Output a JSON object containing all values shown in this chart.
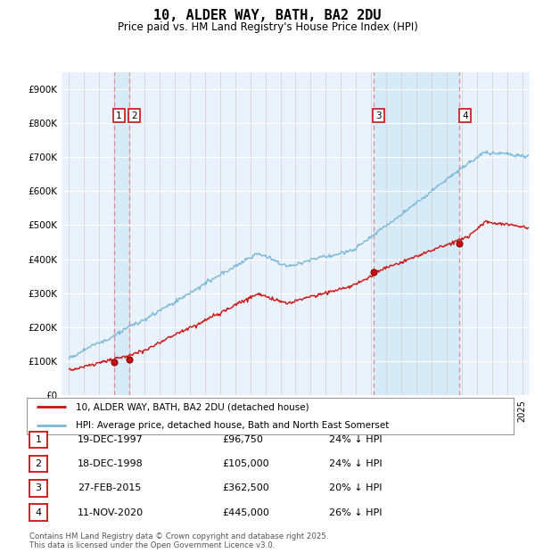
{
  "title": "10, ALDER WAY, BATH, BA2 2DU",
  "subtitle": "Price paid vs. HM Land Registry's House Price Index (HPI)",
  "background_color": "#ffffff",
  "plot_bg_color": "#eaf2fb",
  "ylim": [
    0,
    950000
  ],
  "yticks": [
    0,
    100000,
    200000,
    300000,
    400000,
    500000,
    600000,
    700000,
    800000,
    900000
  ],
  "ytick_labels": [
    "£0",
    "£100K",
    "£200K",
    "£300K",
    "£400K",
    "£500K",
    "£600K",
    "£700K",
    "£800K",
    "£900K"
  ],
  "xlim_start": 1994.5,
  "xlim_end": 2025.5,
  "hpi_color": "#7ab8d9",
  "price_color": "#cc1111",
  "shade_color": "#d6eaf8",
  "dashed_color": "#e08080",
  "transactions": [
    {
      "id": 1,
      "date_label": "19-DEC-1997",
      "year": 1997.96,
      "price": 96750,
      "pct_text": "24% ↓ HPI"
    },
    {
      "id": 2,
      "date_label": "18-DEC-1998",
      "year": 1998.96,
      "price": 105000,
      "pct_text": "24% ↓ HPI"
    },
    {
      "id": 3,
      "date_label": "27-FEB-2015",
      "year": 2015.15,
      "price": 362500,
      "pct_text": "20% ↓ HPI"
    },
    {
      "id": 4,
      "date_label": "11-NOV-2020",
      "year": 2020.86,
      "price": 445000,
      "pct_text": "26% ↓ HPI"
    }
  ],
  "legend_label_price": "10, ALDER WAY, BATH, BA2 2DU (detached house)",
  "legend_label_hpi": "HPI: Average price, detached house, Bath and North East Somerset",
  "footer1": "Contains HM Land Registry data © Crown copyright and database right 2025.",
  "footer2": "This data is licensed under the Open Government Licence v3.0."
}
